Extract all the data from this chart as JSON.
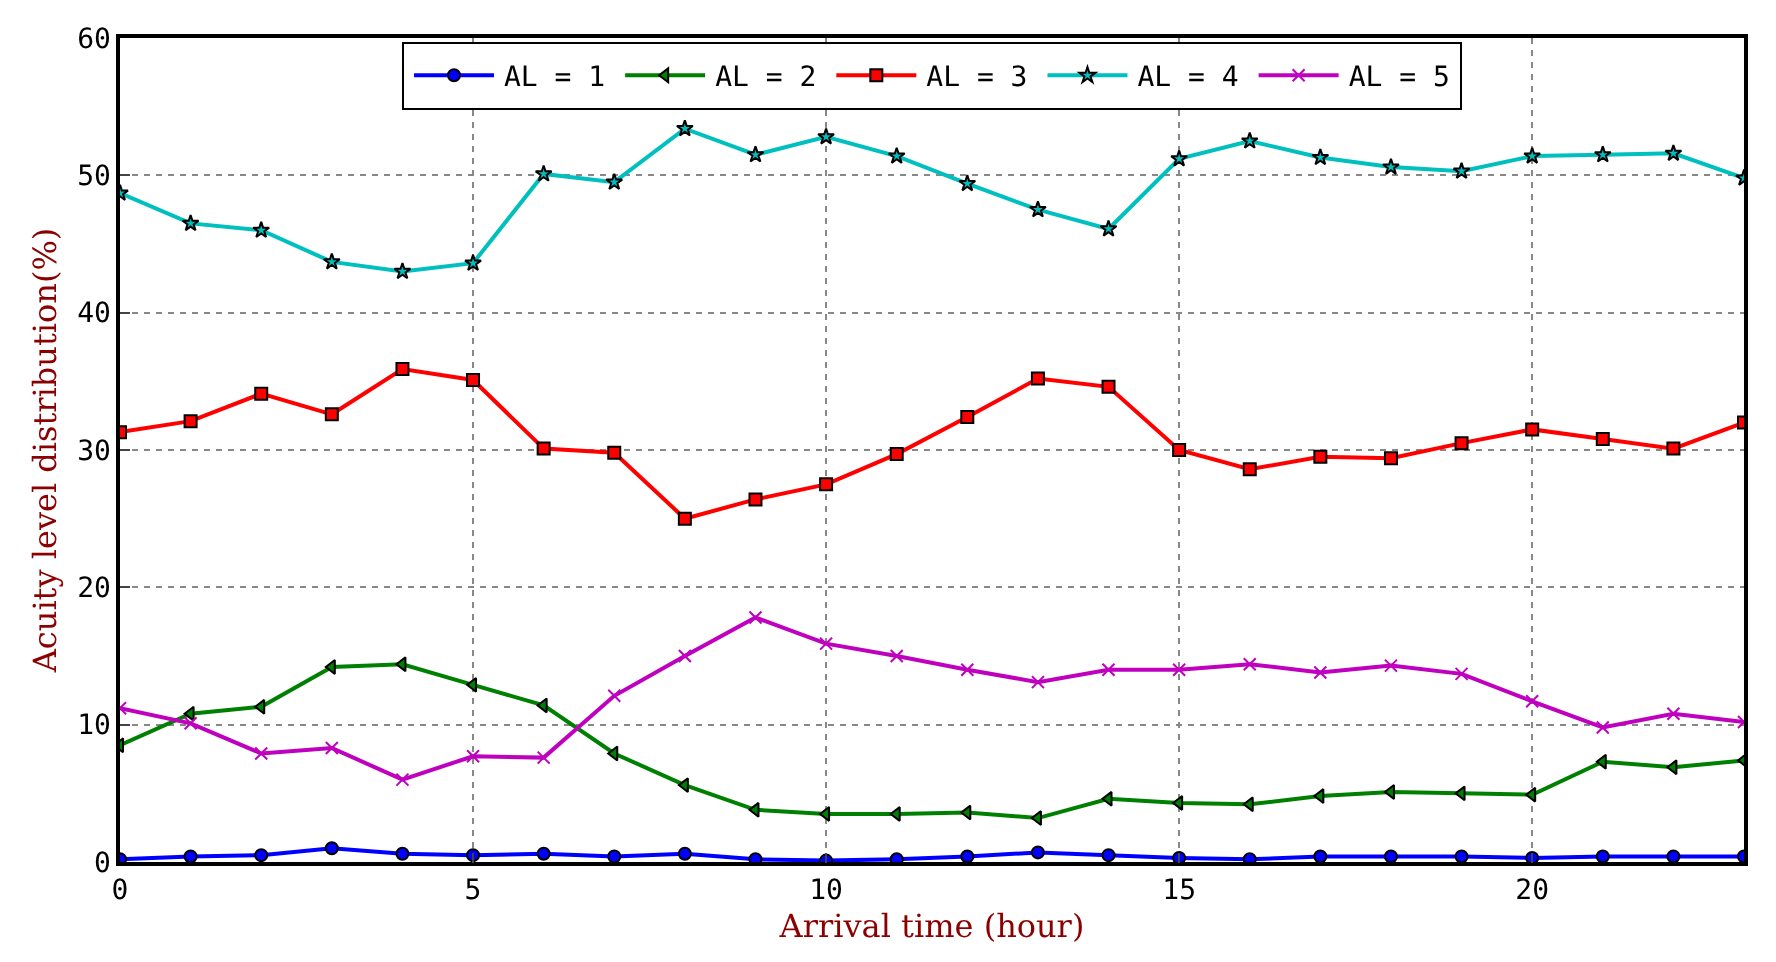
{
  "chart_data": {
    "type": "line",
    "xlabel": "Arrival time (hour)",
    "ylabel": "Acuity level distribution(%)",
    "x": [
      0,
      1,
      2,
      3,
      4,
      5,
      6,
      7,
      8,
      9,
      10,
      11,
      12,
      13,
      14,
      15,
      16,
      17,
      18,
      19,
      20,
      21,
      22,
      23
    ],
    "xlim": [
      0,
      23
    ],
    "xticks": [
      0,
      5,
      10,
      15,
      20
    ],
    "ylim": [
      0,
      60
    ],
    "yticks": [
      0,
      10,
      20,
      30,
      40,
      50,
      60
    ],
    "grid": true,
    "legend": "top",
    "series": [
      {
        "name": "AL = 1",
        "color": "#0000ff",
        "marker": "circle",
        "values": [
          0.2,
          0.4,
          0.5,
          1.0,
          0.6,
          0.5,
          0.6,
          0.4,
          0.6,
          0.2,
          0.1,
          0.2,
          0.4,
          0.7,
          0.5,
          0.3,
          0.2,
          0.4,
          0.4,
          0.4,
          0.3,
          0.4,
          0.4,
          0.4
        ]
      },
      {
        "name": "AL = 2",
        "color": "#008000",
        "marker": "triangle",
        "values": [
          8.5,
          10.8,
          11.3,
          14.2,
          14.4,
          12.9,
          11.4,
          7.9,
          5.6,
          3.8,
          3.5,
          3.5,
          3.6,
          3.2,
          4.6,
          4.3,
          4.2,
          4.8,
          5.1,
          5.0,
          4.9,
          7.3,
          6.9,
          7.4
        ]
      },
      {
        "name": "AL = 3",
        "color": "#ff0000",
        "marker": "square",
        "values": [
          31.3,
          32.1,
          34.1,
          32.6,
          35.9,
          35.1,
          30.1,
          29.8,
          25.0,
          26.4,
          27.5,
          29.7,
          32.4,
          35.2,
          34.6,
          30.0,
          28.6,
          29.5,
          29.4,
          30.5,
          31.5,
          30.8,
          30.1,
          32.0
        ]
      },
      {
        "name": "AL = 4",
        "color": "#00bfbf",
        "marker": "star",
        "values": [
          48.7,
          46.5,
          46.0,
          43.7,
          43.0,
          43.6,
          50.1,
          49.5,
          53.4,
          51.5,
          52.8,
          51.4,
          49.4,
          47.5,
          46.1,
          51.2,
          52.5,
          51.3,
          50.6,
          50.3,
          51.4,
          51.5,
          51.6,
          49.8
        ]
      },
      {
        "name": "AL = 5",
        "color": "#bf00bf",
        "marker": "cross",
        "values": [
          11.2,
          10.1,
          7.9,
          8.3,
          6.0,
          7.7,
          7.6,
          12.1,
          15.0,
          17.8,
          15.9,
          15.0,
          14.0,
          13.1,
          14.0,
          14.0,
          14.4,
          13.8,
          14.3,
          13.7,
          11.7,
          9.8,
          10.8,
          10.2
        ]
      }
    ]
  }
}
